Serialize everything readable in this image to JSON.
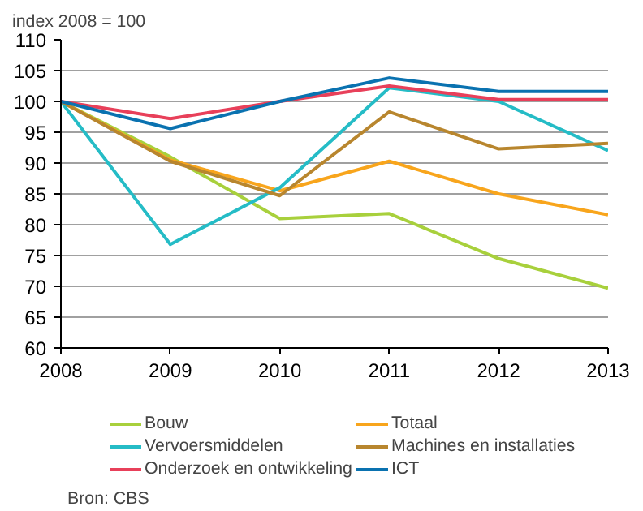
{
  "chart_data": {
    "type": "line",
    "ylabel": "index 2008 = 100",
    "x": [
      2008,
      2009,
      2010,
      2011,
      2012,
      2013
    ],
    "series": [
      {
        "name": "Bouw",
        "color": "#a8d03c",
        "values": [
          100,
          91,
          81,
          81.8,
          74.5,
          69.7
        ]
      },
      {
        "name": "Totaal",
        "color": "#f8a51c",
        "values": [
          100,
          90.5,
          85.5,
          90.3,
          85,
          81.6
        ]
      },
      {
        "name": "Vervoersmiddelen",
        "color": "#25bcc6",
        "values": [
          100,
          76.8,
          86,
          102.2,
          100,
          92
        ]
      },
      {
        "name": "Machines en installaties",
        "color": "#b8862e",
        "values": [
          100,
          90.3,
          84.7,
          98.3,
          92.3,
          93.2
        ]
      },
      {
        "name": "Onderzoek en ontwikkeling",
        "color": "#e8405a",
        "values": [
          100,
          97.2,
          100,
          102.5,
          100.3,
          100.3
        ]
      },
      {
        "name": "ICT",
        "color": "#0a72b0",
        "values": [
          100,
          95.6,
          100,
          103.8,
          101.6,
          101.6
        ]
      }
    ],
    "xlim": [
      2008,
      2013
    ],
    "xticks": [
      2008,
      2009,
      2010,
      2011,
      2012,
      2013
    ],
    "ylim": [
      60,
      110
    ],
    "yticks": [
      60,
      65,
      70,
      75,
      80,
      85,
      90,
      95,
      100,
      105,
      110
    ],
    "grid": "y",
    "legend": "bottom",
    "marker": "none",
    "line_style": "solid",
    "annotations": [
      "Bron: CBS"
    ]
  }
}
